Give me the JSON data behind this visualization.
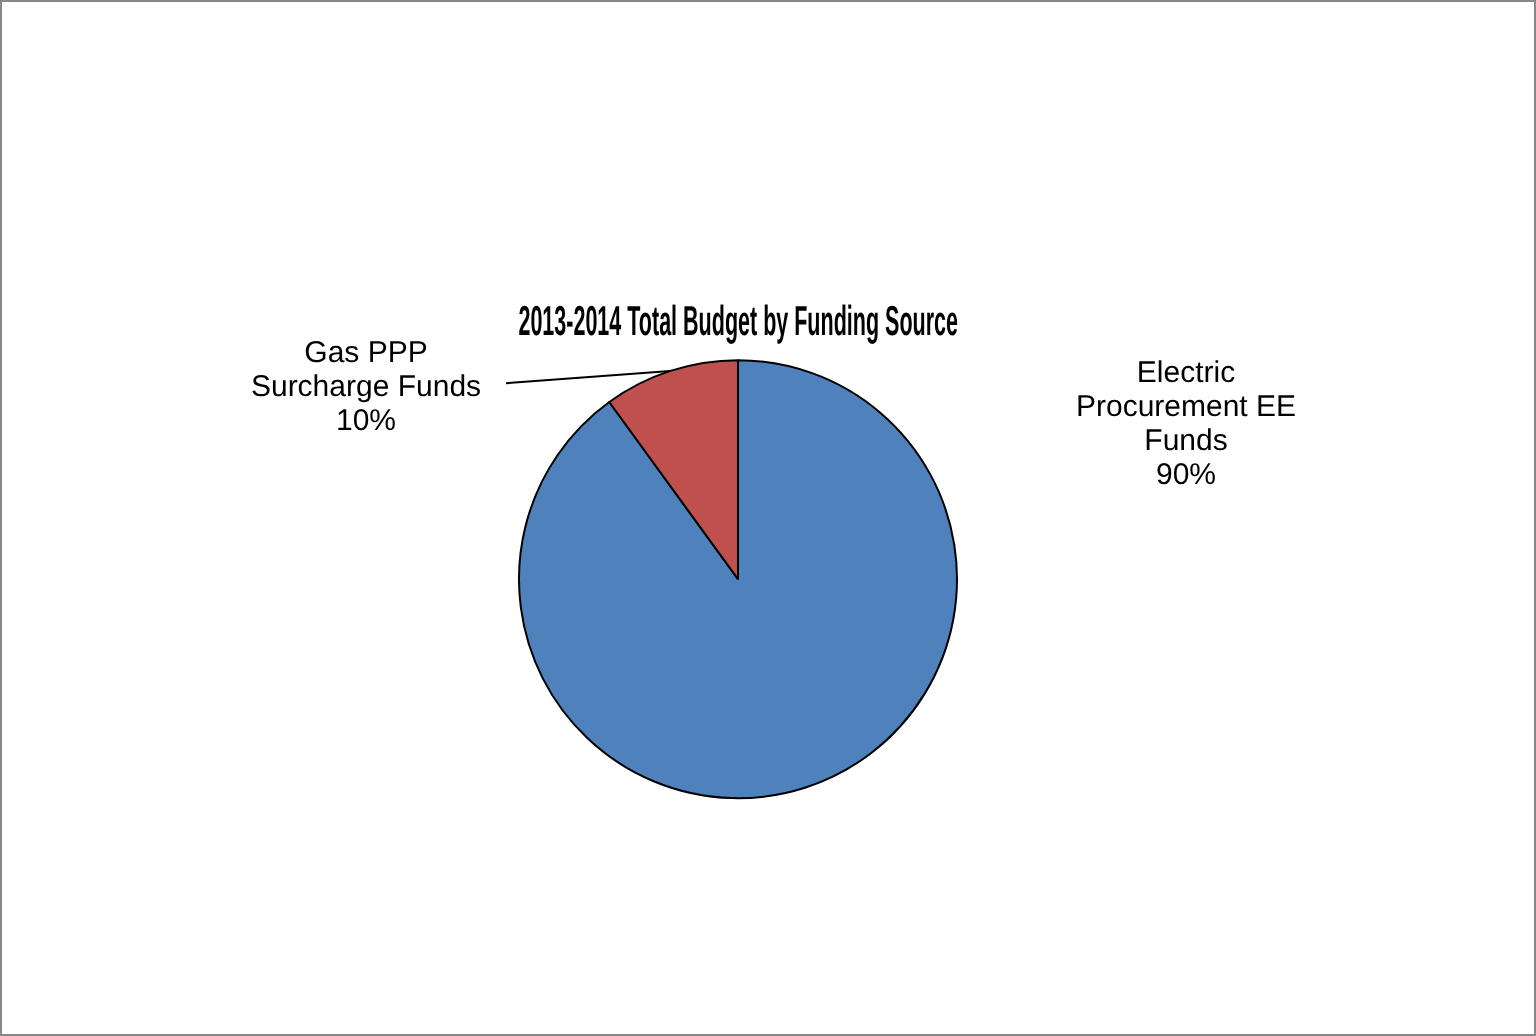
{
  "chart_data": {
    "type": "pie",
    "title": "2013-2014 Total Budget by Funding Source",
    "categories": [
      "Electric Procurement EE Funds",
      "Gas PPP Surcharge Funds"
    ],
    "values": [
      90,
      10
    ],
    "colors": [
      "#4f81bd",
      "#c0504d"
    ],
    "value_labels": [
      "90%",
      "10%"
    ],
    "legend": false
  }
}
